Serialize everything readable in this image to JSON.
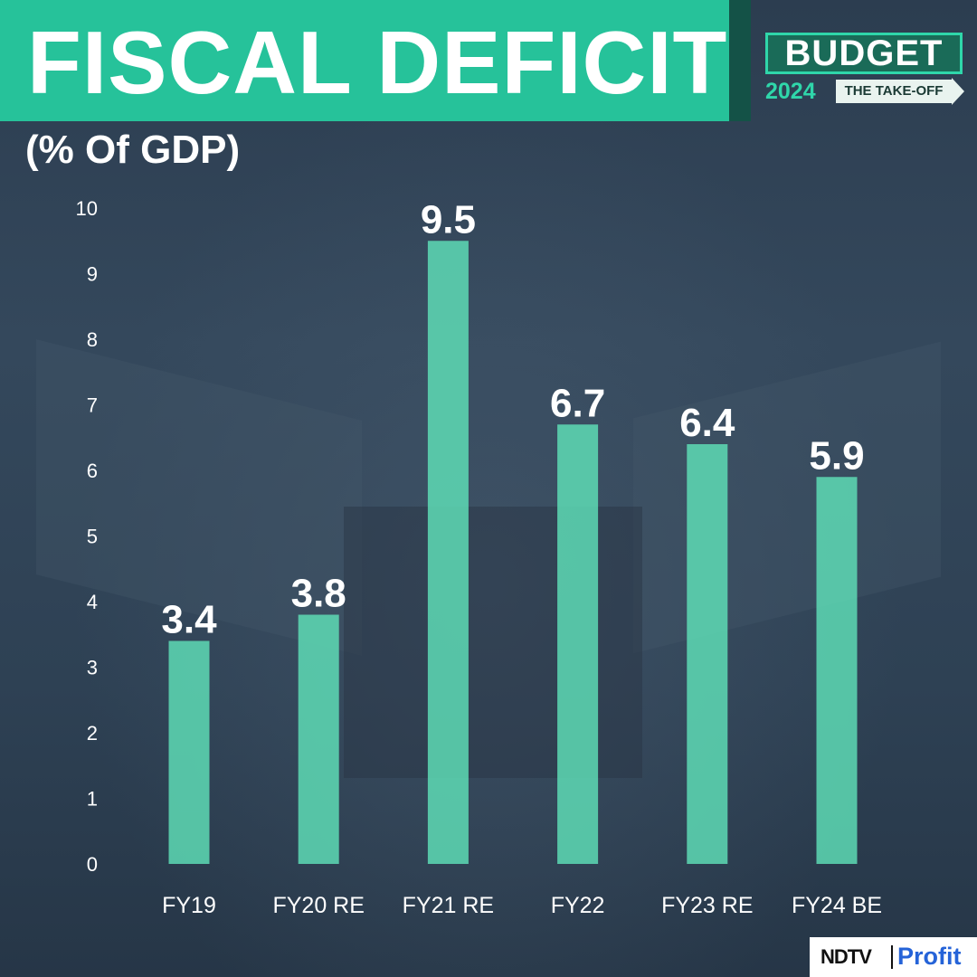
{
  "header": {
    "title": "FISCAL DEFICIT",
    "subtitle": "(% Of GDP)"
  },
  "logo": {
    "word": "BUDGET",
    "year": "2024",
    "tagline": "THE TAKE-OFF"
  },
  "brand": {
    "primary": "NDTV",
    "secondary": "Profit"
  },
  "colors": {
    "accent": "#26c29a",
    "bar": "#5fe0b8",
    "background": "#2a3a4c",
    "text": "#ffffff"
  },
  "chart_data": {
    "type": "bar",
    "title": "FISCAL DEFICIT",
    "ylabel": "(% Of GDP)",
    "xlabel": "",
    "categories": [
      "FY19",
      "FY20 RE",
      "FY21 RE",
      "FY22",
      "FY23 RE",
      "FY24 BE"
    ],
    "values": [
      3.4,
      3.8,
      9.5,
      6.7,
      6.4,
      5.9
    ],
    "data_labels": [
      "3.4",
      "3.8",
      "9.5",
      "6.7",
      "6.4",
      "5.9"
    ],
    "ylim": [
      0,
      10
    ],
    "yticks": [
      "0",
      "1",
      "2",
      "3",
      "4",
      "5",
      "6",
      "7",
      "8",
      "9",
      "10"
    ],
    "grid": false,
    "legend": "none"
  }
}
